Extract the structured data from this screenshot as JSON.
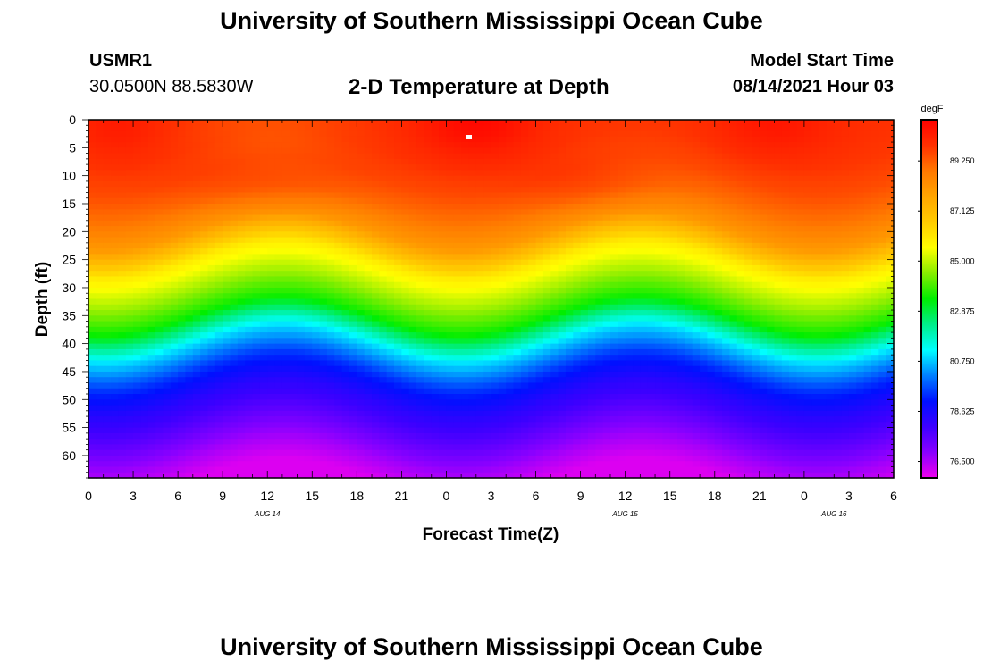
{
  "header": {
    "title": "University of Southern Mississippi Ocean Cube",
    "station": "USMR1",
    "location": "30.0500N  88.5830W",
    "plot_title": "2-D Temperature at Depth",
    "model_start_label": "Model Start Time",
    "model_start_value": "08/14/2021 Hour 03"
  },
  "footer": {
    "title": "University of Southern Mississippi Ocean Cube"
  },
  "chart_data": {
    "type": "heatmap",
    "title": "2-D Temperature at Depth",
    "xlabel": "Forecast Time(Z)",
    "ylabel": "Depth (ft)",
    "x_range_hours": [
      0,
      54
    ],
    "y_range_ft": [
      0,
      64
    ],
    "x_tick_labels": [
      "0",
      "3",
      "6",
      "9",
      "12",
      "15",
      "18",
      "21",
      "0",
      "3",
      "6",
      "9",
      "12",
      "15",
      "18",
      "21",
      "0",
      "3",
      "6"
    ],
    "date_labels": [
      "AUG 14",
      "AUG 15",
      "AUG 16"
    ],
    "y_tick_labels": [
      "0",
      "5",
      "10",
      "15",
      "20",
      "25",
      "30",
      "35",
      "40",
      "45",
      "50",
      "55",
      "60"
    ],
    "colorbar": {
      "unit": "degF",
      "min": 75.8,
      "max": 91.0,
      "tick_labels": [
        "89.250",
        "87.125",
        "85.000",
        "82.875",
        "80.750",
        "78.625",
        "76.500"
      ],
      "colors": [
        "#ee00ee",
        "#8a00ff",
        "#3c00ff",
        "#0010ff",
        "#0080ff",
        "#00ffff",
        "#00ee88",
        "#00ee00",
        "#88ee00",
        "#ffff00",
        "#ffcc00",
        "#ffa500",
        "#ff7800",
        "#ff3000",
        "#ff0000"
      ]
    },
    "samples": {
      "depths_ft": [
        0,
        5,
        10,
        15,
        20,
        25,
        30,
        35,
        40,
        45,
        50,
        55,
        60,
        64
      ],
      "temperature_profile_degF_at_hour_0": [
        89.9,
        89.8,
        89.5,
        88.9,
        88.0,
        86.0,
        84.8,
        83.5,
        81.0,
        79.4,
        78.3,
        77.5,
        76.6,
        76.0
      ],
      "surface_max_degF": 90.8,
      "surface_max_hour": 26
    }
  }
}
